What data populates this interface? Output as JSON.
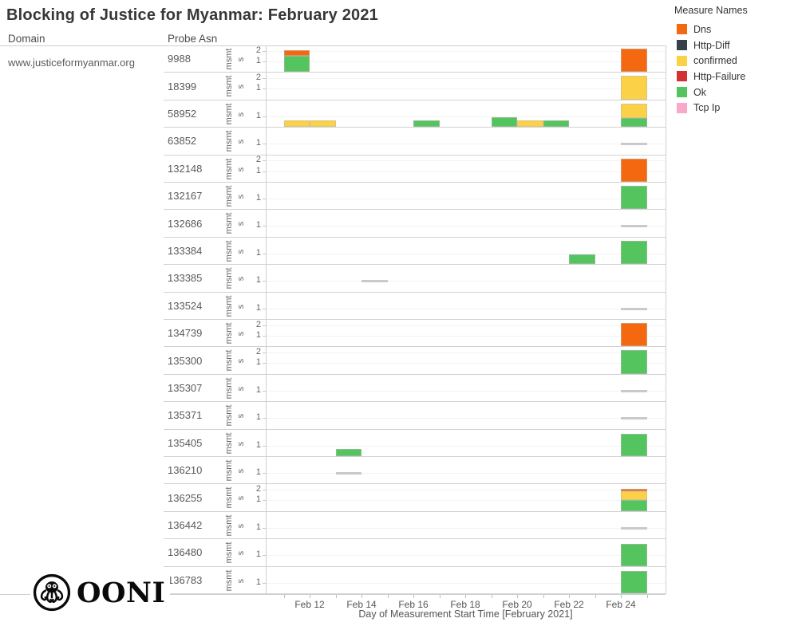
{
  "title": "Blocking of Justice for Myanmar: February 2021",
  "columns": {
    "domain": "Domain",
    "probe_asn": "Probe Asn"
  },
  "domain_value": "www.justiceformyanmar.org",
  "row_measure_label": {
    "full": "msmts",
    "parts": [
      "msmt",
      "s"
    ]
  },
  "legend": {
    "title": "Measure Names",
    "items": [
      {
        "label": "Dns",
        "color": "#f4690f"
      },
      {
        "label": "Http-Diff",
        "color": "#36404a"
      },
      {
        "label": "confirmed",
        "color": "#fbd148"
      },
      {
        "label": "Http-Failure",
        "color": "#d33232"
      },
      {
        "label": "Ok",
        "color": "#54c45e"
      },
      {
        "label": "Tcp Ip",
        "color": "#f8a9c7"
      }
    ]
  },
  "xaxis": {
    "title": "Day of Measurement Start Time [February 2021]",
    "tick_labels": [
      "Feb 12",
      "Feb 14",
      "Feb 16",
      "Feb 18",
      "Feb 20",
      "Feb 22",
      "Feb 24"
    ],
    "labeled_days": [
      12,
      14,
      16,
      18,
      20,
      22,
      24
    ],
    "minor_tick_days": [
      11,
      12,
      13,
      14,
      15,
      16,
      17,
      18,
      19,
      20,
      21,
      22,
      23,
      24,
      25
    ]
  },
  "footer": {
    "logo_text": "OONI"
  },
  "chart_data": {
    "type": "bar",
    "stacked": true,
    "title": "Blocking of Justice for Myanmar: February 2021",
    "xlabel": "Day of Measurement Start Time [February 2021]",
    "ylabel": "msmts",
    "x_domain_days_feb_2021": [
      10.3,
      25.7
    ],
    "row_y_max": 2.35,
    "measure_colors": {
      "Dns": "#f4690f",
      "Http-Diff": "#36404a",
      "confirmed": "#fbd148",
      "Http-Failure": "#d33232",
      "Ok": "#54c45e",
      "Tcp Ip": "#f8a9c7"
    },
    "rows": [
      {
        "asn": "9988",
        "yticks": [
          2,
          1
        ],
        "bars": [
          {
            "day": 11,
            "segments": [
              {
                "measure": "Ok",
                "value": 1.55
              },
              {
                "measure": "Dns",
                "value": 0.5
              }
            ]
          },
          {
            "day": 24,
            "segments": [
              {
                "measure": "Dns",
                "value": 2.2
              }
            ]
          }
        ],
        "dashes": []
      },
      {
        "asn": "18399",
        "yticks": [
          2,
          1
        ],
        "bars": [
          {
            "day": 24,
            "segments": [
              {
                "measure": "confirmed",
                "value": 2.2
              }
            ]
          }
        ],
        "dashes": []
      },
      {
        "asn": "58952",
        "yticks": [
          1
        ],
        "bars": [
          {
            "day": 11,
            "segments": [
              {
                "measure": "confirmed",
                "value": 0.65
              }
            ]
          },
          {
            "day": 12,
            "segments": [
              {
                "measure": "confirmed",
                "value": 0.65
              }
            ]
          },
          {
            "day": 16,
            "segments": [
              {
                "measure": "Ok",
                "value": 0.65
              }
            ]
          },
          {
            "day": 19,
            "segments": [
              {
                "measure": "Ok",
                "value": 0.9
              }
            ]
          },
          {
            "day": 20,
            "segments": [
              {
                "measure": "confirmed",
                "value": 0.65
              }
            ]
          },
          {
            "day": 21,
            "segments": [
              {
                "measure": "Ok",
                "value": 0.65
              }
            ]
          },
          {
            "day": 24,
            "segments": [
              {
                "measure": "Ok",
                "value": 0.85
              },
              {
                "measure": "confirmed",
                "value": 1.35
              }
            ]
          }
        ],
        "dashes": []
      },
      {
        "asn": "63852",
        "yticks": [
          1
        ],
        "bars": [],
        "dashes": [
          {
            "day": 24,
            "value": 1
          }
        ]
      },
      {
        "asn": "132148",
        "yticks": [
          2,
          1
        ],
        "bars": [
          {
            "day": 24,
            "segments": [
              {
                "measure": "Dns",
                "value": 2.2
              }
            ]
          }
        ],
        "dashes": []
      },
      {
        "asn": "132167",
        "yticks": [
          1
        ],
        "bars": [
          {
            "day": 24,
            "segments": [
              {
                "measure": "Ok",
                "value": 2.2
              }
            ]
          }
        ],
        "dashes": []
      },
      {
        "asn": "132686",
        "yticks": [
          1
        ],
        "bars": [],
        "dashes": [
          {
            "day": 24,
            "value": 1
          }
        ]
      },
      {
        "asn": "133384",
        "yticks": [
          1
        ],
        "bars": [
          {
            "day": 22,
            "segments": [
              {
                "measure": "Ok",
                "value": 0.95
              }
            ]
          },
          {
            "day": 24,
            "segments": [
              {
                "measure": "Ok",
                "value": 2.2
              }
            ]
          }
        ],
        "dashes": []
      },
      {
        "asn": "133385",
        "yticks": [
          1
        ],
        "bars": [],
        "dashes": [
          {
            "day": 14,
            "value": 1
          }
        ]
      },
      {
        "asn": "133524",
        "yticks": [
          1
        ],
        "bars": [],
        "dashes": [
          {
            "day": 24,
            "value": 1
          }
        ]
      },
      {
        "asn": "134739",
        "yticks": [
          2,
          1
        ],
        "bars": [
          {
            "day": 24,
            "segments": [
              {
                "measure": "Dns",
                "value": 2.2
              }
            ]
          }
        ],
        "dashes": []
      },
      {
        "asn": "135300",
        "yticks": [
          2,
          1
        ],
        "bars": [
          {
            "day": 24,
            "segments": [
              {
                "measure": "Ok",
                "value": 2.2
              }
            ]
          }
        ],
        "dashes": []
      },
      {
        "asn": "135307",
        "yticks": [
          1
        ],
        "bars": [],
        "dashes": [
          {
            "day": 24,
            "value": 1
          }
        ]
      },
      {
        "asn": "135371",
        "yticks": [
          1
        ],
        "bars": [],
        "dashes": [
          {
            "day": 24,
            "value": 1
          }
        ]
      },
      {
        "asn": "135405",
        "yticks": [
          1
        ],
        "bars": [
          {
            "day": 13,
            "segments": [
              {
                "measure": "Ok",
                "value": 0.7
              }
            ]
          },
          {
            "day": 24,
            "segments": [
              {
                "measure": "Ok",
                "value": 2.1
              }
            ]
          }
        ],
        "dashes": []
      },
      {
        "asn": "136210",
        "yticks": [
          1
        ],
        "bars": [],
        "dashes": [
          {
            "day": 13,
            "value": 1
          }
        ]
      },
      {
        "asn": "136255",
        "yticks": [
          2,
          1
        ],
        "bars": [
          {
            "day": 24,
            "segments": [
              {
                "measure": "Ok",
                "value": 1.0
              },
              {
                "measure": "confirmed",
                "value": 0.85
              },
              {
                "measure": "Dns",
                "value": 0.25
              }
            ]
          }
        ],
        "dashes": []
      },
      {
        "asn": "136442",
        "yticks": [
          1
        ],
        "bars": [],
        "dashes": [
          {
            "day": 24,
            "value": 1
          }
        ]
      },
      {
        "asn": "136480",
        "yticks": [
          1
        ],
        "bars": [
          {
            "day": 24,
            "segments": [
              {
                "measure": "Ok",
                "value": 2.1
              }
            ]
          }
        ],
        "dashes": []
      },
      {
        "asn": "136783",
        "yticks": [
          1
        ],
        "bars": [
          {
            "day": 24,
            "segments": [
              {
                "measure": "Ok",
                "value": 2.1
              }
            ]
          }
        ],
        "dashes": []
      }
    ]
  }
}
